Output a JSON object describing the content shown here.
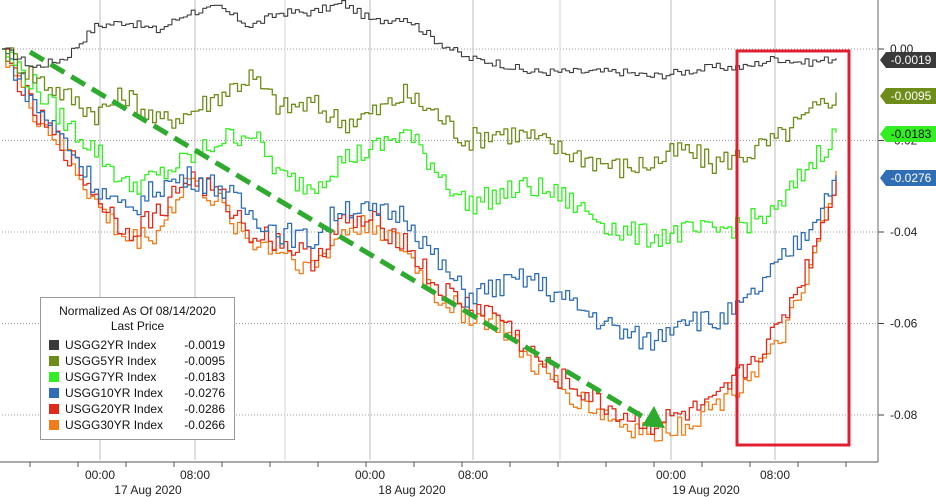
{
  "chart_data": {
    "type": "line",
    "legend": {
      "title": "Normalized As Of 08/14/2020",
      "subtitle": "Last Price",
      "placement": "bottom-left"
    },
    "series": [
      {
        "name": "USGG2YR Index",
        "last": "-0.0019",
        "color": "#3a3a3a",
        "values": [
          0.0,
          -0.004,
          -0.002,
          0.005,
          0.006,
          0.004,
          0.008,
          0.009,
          0.005,
          0.008,
          0.008,
          0.01,
          0.006,
          0.007,
          0.002,
          -0.002,
          -0.003,
          -0.005,
          -0.005,
          -0.005,
          -0.005,
          -0.006,
          -0.005,
          -0.004,
          -0.004,
          -0.002,
          -0.003,
          -0.002
        ]
      },
      {
        "name": "USGG5YR Index",
        "last": "-0.0095",
        "color": "#6e8c1a",
        "values": [
          0.0,
          -0.006,
          -0.01,
          -0.014,
          -0.01,
          -0.016,
          -0.014,
          -0.01,
          -0.006,
          -0.013,
          -0.012,
          -0.016,
          -0.014,
          -0.01,
          -0.014,
          -0.02,
          -0.018,
          -0.019,
          -0.022,
          -0.024,
          -0.026,
          -0.025,
          -0.022,
          -0.025,
          -0.023,
          -0.02,
          -0.015,
          -0.0095
        ]
      },
      {
        "name": "USGG7YR Index",
        "last": "-0.0183",
        "color": "#33ee22",
        "values": [
          0.0,
          -0.008,
          -0.016,
          -0.022,
          -0.03,
          -0.028,
          -0.024,
          -0.02,
          -0.018,
          -0.028,
          -0.03,
          -0.024,
          -0.022,
          -0.018,
          -0.026,
          -0.034,
          -0.032,
          -0.03,
          -0.032,
          -0.036,
          -0.04,
          -0.041,
          -0.04,
          -0.04,
          -0.038,
          -0.036,
          -0.026,
          -0.0183
        ]
      },
      {
        "name": "USGG10YR Index",
        "last": "-0.0276",
        "color": "#2f6eb5",
        "values": [
          0.0,
          -0.012,
          -0.02,
          -0.03,
          -0.036,
          -0.03,
          -0.028,
          -0.03,
          -0.036,
          -0.04,
          -0.042,
          -0.034,
          -0.036,
          -0.036,
          -0.046,
          -0.054,
          -0.052,
          -0.05,
          -0.054,
          -0.058,
          -0.062,
          -0.064,
          -0.058,
          -0.06,
          -0.056,
          -0.048,
          -0.04,
          -0.0276
        ]
      },
      {
        "name": "USGG20YR Index",
        "last": "-0.0286",
        "color": "#e02a1a",
        "values": [
          0.0,
          -0.014,
          -0.022,
          -0.032,
          -0.04,
          -0.036,
          -0.028,
          -0.032,
          -0.04,
          -0.042,
          -0.046,
          -0.038,
          -0.038,
          -0.042,
          -0.052,
          -0.056,
          -0.058,
          -0.066,
          -0.072,
          -0.076,
          -0.08,
          -0.082,
          -0.08,
          -0.078,
          -0.07,
          -0.062,
          -0.048,
          -0.0286
        ]
      },
      {
        "name": "USGG30YR Index",
        "last": "-0.0266",
        "color": "#f07c1a",
        "values": [
          0.0,
          -0.014,
          -0.022,
          -0.034,
          -0.042,
          -0.04,
          -0.028,
          -0.034,
          -0.042,
          -0.044,
          -0.048,
          -0.04,
          -0.038,
          -0.044,
          -0.054,
          -0.058,
          -0.06,
          -0.068,
          -0.074,
          -0.078,
          -0.082,
          -0.084,
          -0.082,
          -0.078,
          -0.072,
          -0.066,
          -0.052,
          -0.0266
        ]
      }
    ],
    "ylim": [
      -0.09,
      0.001
    ],
    "yticks": [
      "0.00",
      "-0.02",
      "-0.04",
      "-0.06",
      "-0.08"
    ],
    "ytick_values": [
      0.0,
      -0.02,
      -0.04,
      -0.06,
      -0.08
    ],
    "xticks": [
      "00:00",
      "08:00",
      "00:00",
      "08:00",
      "00:00",
      "08:00"
    ],
    "days": [
      "17 Aug 2020",
      "18 Aug 2020",
      "19 Aug 2020"
    ],
    "grid": true,
    "annotations": [
      {
        "type": "arrow",
        "color": "#2eaa2e",
        "style": "dashed"
      },
      {
        "type": "rectangle",
        "color": "#e02030"
      }
    ]
  }
}
